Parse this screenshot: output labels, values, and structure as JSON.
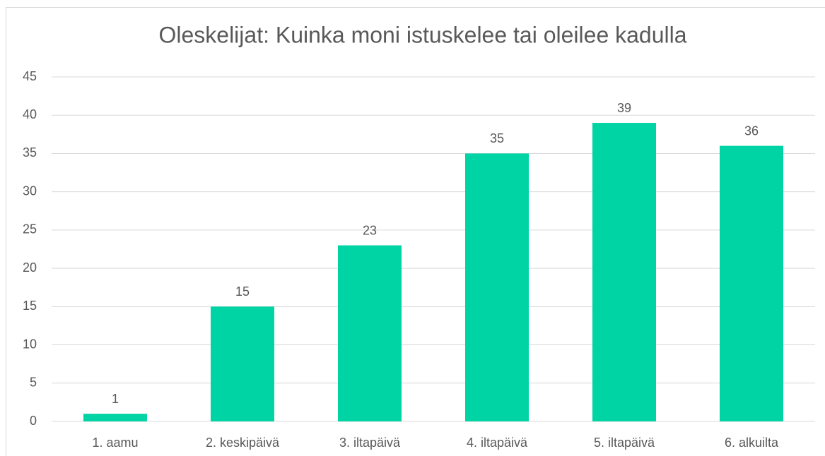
{
  "chart_data": {
    "type": "bar",
    "title": "Oleskelijat: Kuinka moni istuskelee tai oleilee kadulla",
    "categories": [
      "1. aamu",
      "2. keskipäivä",
      "3. iltapäivä",
      "4. iltapäivä",
      "5. iltapäivä",
      "6. alkuilta"
    ],
    "values": [
      1,
      15,
      23,
      35,
      39,
      36
    ],
    "color": "#00d4a4",
    "ylim": [
      0,
      45
    ],
    "yticks": [
      0,
      5,
      10,
      15,
      20,
      25,
      30,
      35,
      40,
      45
    ],
    "grid": true,
    "data_labels": true
  }
}
